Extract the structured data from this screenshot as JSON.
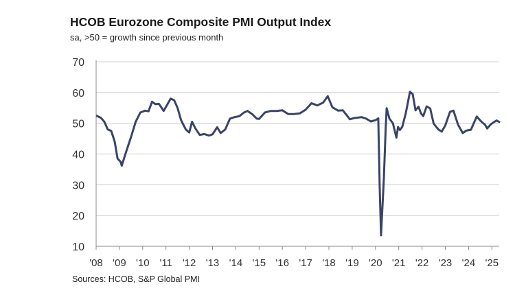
{
  "chart_data": {
    "type": "line",
    "title": "HCOB Eurozone Composite PMI Output Index",
    "subtitle": "sa, >50 = growth since previous month",
    "source": "Sources: HCOB, S&P Global PMI",
    "ylim": [
      10,
      70
    ],
    "yticks": [
      10,
      20,
      30,
      40,
      50,
      60,
      70
    ],
    "xlim": [
      2008.0,
      2025.4
    ],
    "xticks": [
      {
        "year": 2008,
        "label": "'08"
      },
      {
        "year": 2009,
        "label": "'09"
      },
      {
        "year": 2010,
        "label": "'10"
      },
      {
        "year": 2011,
        "label": "'11"
      },
      {
        "year": 2012,
        "label": "'12"
      },
      {
        "year": 2013,
        "label": "'13"
      },
      {
        "year": 2014,
        "label": "'14"
      },
      {
        "year": 2015,
        "label": "'15"
      },
      {
        "year": 2016,
        "label": "'16"
      },
      {
        "year": 2017,
        "label": "'17"
      },
      {
        "year": 2018,
        "label": "'18"
      },
      {
        "year": 2019,
        "label": "'19"
      },
      {
        "year": 2020,
        "label": "'20"
      },
      {
        "year": 2021,
        "label": "'21"
      },
      {
        "year": 2022,
        "label": "'22"
      },
      {
        "year": 2023,
        "label": "'23"
      },
      {
        "year": 2024,
        "label": "'24"
      },
      {
        "year": 2025,
        "label": "'25"
      }
    ],
    "grid": "horizontal",
    "line_color": "#3a4468",
    "series": [
      {
        "x": [
          2008.0,
          2008.2,
          2008.35,
          2008.5,
          2008.65,
          2008.8,
          2008.92,
          2009.05,
          2009.1,
          2009.3,
          2009.5,
          2009.7,
          2009.9,
          2010.1,
          2010.25,
          2010.4,
          2010.55,
          2010.7,
          2010.9,
          2011.05,
          2011.2,
          2011.35,
          2011.5,
          2011.65,
          2011.85,
          2012.0,
          2012.12,
          2012.25,
          2012.45,
          2012.65,
          2012.85,
          2013.0,
          2013.2,
          2013.35,
          2013.55,
          2013.75,
          2013.95,
          2014.15,
          2014.35,
          2014.5,
          2014.7,
          2014.9,
          2015.0,
          2015.25,
          2015.5,
          2015.75,
          2016.0,
          2016.25,
          2016.5,
          2016.75,
          2017.0,
          2017.25,
          2017.5,
          2017.75,
          2017.95,
          2018.15,
          2018.4,
          2018.6,
          2018.9,
          2019.1,
          2019.4,
          2019.6,
          2019.8,
          2020.0,
          2020.12,
          2020.18,
          2020.24,
          2020.36,
          2020.44,
          2020.48,
          2020.6,
          2020.75,
          2020.9,
          2020.97,
          2021.05,
          2021.15,
          2021.3,
          2021.4,
          2021.48,
          2021.6,
          2021.72,
          2021.85,
          2021.95,
          2022.05,
          2022.2,
          2022.35,
          2022.5,
          2022.7,
          2022.85,
          2023.0,
          2023.2,
          2023.35,
          2023.55,
          2023.75,
          2023.9,
          2024.1,
          2024.35,
          2024.5,
          2024.6,
          2024.7,
          2024.8,
          2024.95,
          2025.05,
          2025.2,
          2025.35
        ],
        "y": [
          52.5,
          51.8,
          50.5,
          48,
          47.5,
          44,
          38.5,
          37.5,
          36.2,
          41,
          45.5,
          50.5,
          53.5,
          54.1,
          53.9,
          57,
          56.2,
          56.3,
          54,
          56,
          58,
          57.5,
          55,
          51,
          48,
          47,
          50.5,
          48.5,
          46.2,
          46.5,
          46,
          46.4,
          48.7,
          46.8,
          48,
          51.5,
          52,
          52.3,
          53.5,
          54,
          53,
          51.5,
          51.4,
          53.5,
          54,
          54,
          54.2,
          53,
          53,
          53.2,
          54.4,
          56.5,
          55.8,
          56.7,
          58.8,
          55.2,
          54.1,
          54.2,
          51.3,
          51.7,
          52,
          51.5,
          50.6,
          51,
          51.6,
          29.7,
          13.6,
          31.9,
          48.5,
          54.9,
          51.5,
          50,
          45.3,
          48.8,
          47.8,
          48.8,
          53.2,
          57.1,
          60.2,
          59.5,
          54.2,
          55.4,
          53.3,
          52.3,
          55.5,
          54.8,
          49.9,
          48,
          47.3,
          49.3,
          53.7,
          54.1,
          49.5,
          46.8,
          47.6,
          47.9,
          52.2,
          50.9,
          50.2,
          49.6,
          48.3,
          49.6,
          50.2,
          50.9,
          50.3
        ]
      }
    ]
  }
}
